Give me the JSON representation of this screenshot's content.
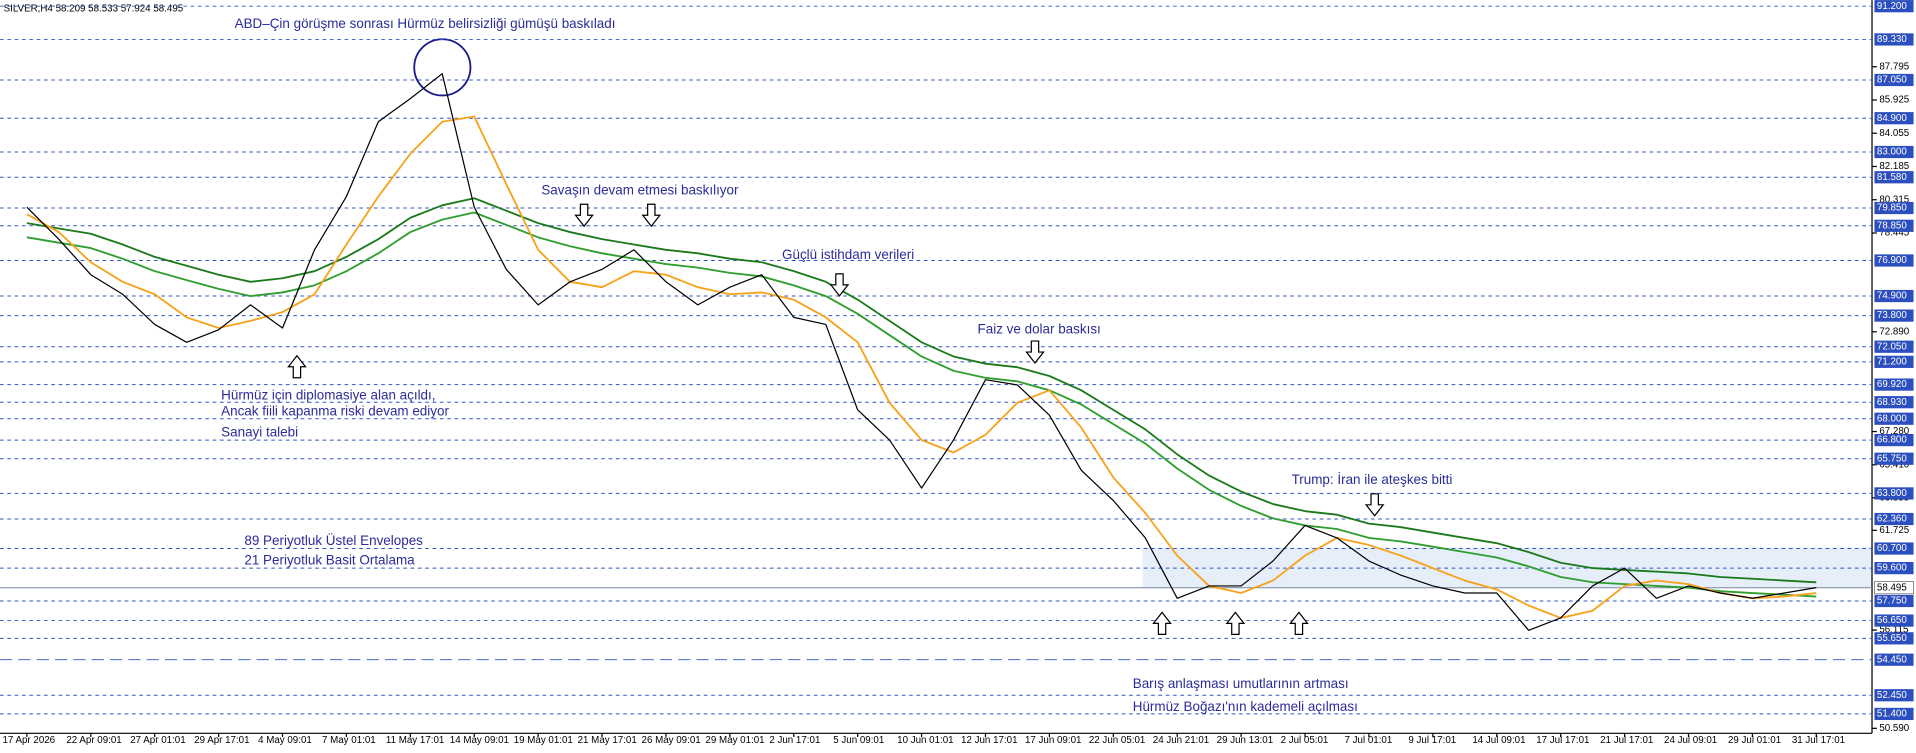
{
  "chart_data": {
    "type": "line",
    "header": "SILVER,H4  58.209 58.533 57.924 58.495",
    "categories": [
      "17 Apr 2026",
      null,
      "22 Apr 09:01",
      null,
      "27 Apr 01:01",
      null,
      "29 Apr 17:01",
      null,
      "4 May 09:01",
      null,
      "7 May 01:01",
      null,
      "11 May 17:01",
      null,
      "14 May 09:01",
      null,
      "19 May 01:01",
      null,
      "21 May 17:01",
      null,
      "26 May 09:01",
      null,
      "29 May 01:01",
      null,
      "2 Jun 17:01",
      null,
      "5 Jun 09:01",
      null,
      "10 Jun 01:01",
      null,
      "12 Jun 17:01",
      null,
      "17 Jun 09:01",
      null,
      "22 Jun 05:01",
      null,
      "24 Jun 21:01",
      null,
      "29 Jun 13:01",
      null,
      "2 Jul 05:01",
      null,
      "7 Jul 01:01",
      null,
      "9 Jul 17:01",
      null,
      "14 Jul 09:01",
      null,
      "17 Jul 17:01",
      null,
      "21 Jul 17:01",
      null,
      "24 Jul 09:01",
      null,
      "29 Jul 01:01",
      null,
      "31 Jul 17:01"
    ],
    "series": [
      {
        "color": "#1a7a1a",
        "values": [
          79.0,
          78.7,
          78.4,
          77.8,
          77.1,
          76.6,
          76.1,
          75.7,
          75.9,
          76.3,
          77.1,
          78.1,
          79.3,
          80.0,
          80.4,
          79.7,
          79.0,
          78.5,
          78.1,
          77.8,
          77.5,
          77.3,
          77.0,
          76.8,
          76.3,
          75.7,
          74.7,
          73.5,
          72.3,
          71.5,
          71.1,
          70.9,
          70.4,
          69.6,
          68.5,
          67.4,
          66.0,
          64.8,
          63.9,
          63.2,
          62.8,
          62.6,
          62.1,
          61.9,
          61.6,
          61.3,
          61.0,
          60.5,
          59.9,
          59.6,
          59.5,
          59.4,
          59.3,
          59.1,
          59.0,
          58.9,
          58.8
        ]
      },
      {
        "color": "#2e9e2e",
        "values": [
          78.2,
          77.9,
          77.6,
          77.0,
          76.3,
          75.8,
          75.3,
          74.9,
          75.1,
          75.5,
          76.3,
          77.3,
          78.5,
          79.2,
          79.6,
          78.9,
          78.2,
          77.7,
          77.3,
          77.0,
          76.7,
          76.5,
          76.2,
          76.0,
          75.5,
          74.9,
          73.9,
          72.7,
          71.5,
          70.7,
          70.3,
          70.1,
          69.6,
          68.8,
          67.7,
          66.6,
          65.2,
          64.0,
          63.1,
          62.4,
          62.0,
          61.8,
          61.3,
          61.1,
          60.8,
          60.5,
          60.2,
          59.7,
          59.1,
          58.8,
          58.7,
          58.6,
          58.5,
          58.3,
          58.2,
          58.1,
          58.0
        ]
      },
      {
        "color": "#f7a21b",
        "values": [
          79.5,
          78.5,
          76.8,
          75.7,
          75.0,
          73.7,
          73.1,
          73.5,
          74.0,
          75.0,
          77.8,
          80.5,
          82.9,
          84.7,
          85.0,
          81.2,
          77.5,
          75.7,
          75.4,
          76.3,
          76.1,
          75.4,
          75.0,
          75.1,
          74.7,
          73.7,
          72.3,
          68.9,
          66.8,
          66.1,
          67.1,
          68.9,
          69.6,
          67.5,
          64.7,
          62.7,
          60.3,
          58.6,
          58.2,
          58.9,
          60.3,
          61.3,
          60.9,
          60.3,
          59.6,
          58.9,
          58.4,
          57.5,
          56.8,
          57.2,
          58.6,
          58.9,
          58.7,
          58.2,
          57.9,
          58.0,
          58.2
        ]
      },
      {
        "color": "#000000",
        "values": [
          79.9,
          78.1,
          76.1,
          75.0,
          73.3,
          72.3,
          73.0,
          74.4,
          73.1,
          77.5,
          80.5,
          84.7,
          86.0,
          87.4,
          79.9,
          76.4,
          74.4,
          75.7,
          76.4,
          77.5,
          75.7,
          74.4,
          75.4,
          76.1,
          73.7,
          73.3,
          68.5,
          66.8,
          64.1,
          66.8,
          70.2,
          69.9,
          68.2,
          65.1,
          63.4,
          61.3,
          57.9,
          58.6,
          58.6,
          60.0,
          62.0,
          61.3,
          60.0,
          59.2,
          58.6,
          58.2,
          58.2,
          56.1,
          56.8,
          58.6,
          59.6,
          57.9,
          58.6,
          58.2,
          57.9,
          58.2,
          58.5
        ]
      }
    ],
    "ylim": [
      50.31,
      91.54
    ],
    "yticks": [
      87.795,
      85.925,
      84.055,
      82.185,
      80.315,
      78.445,
      {
        "value": 72.89,
        "label": "72.890"
      },
      {
        "value": 67.28,
        "label": "67.280"
      },
      {
        "value": 65.41,
        "label": "65.410"
      },
      63.555,
      61.725,
      56.115,
      {
        "value": 50.59,
        "label": "50.590"
      }
    ],
    "levels": [
      {
        "value": 91.2,
        "label": "91.200"
      },
      {
        "value": 89.33,
        "label": "89.330"
      },
      {
        "value": 87.05,
        "label": "87.050"
      },
      {
        "value": 84.9,
        "label": "84.900"
      },
      {
        "value": 83,
        "label": "83.000"
      },
      {
        "value": 81.58,
        "label": "81.580"
      },
      {
        "value": 79.85,
        "label": "79.850"
      },
      {
        "value": 78.85,
        "label": "78.850"
      },
      {
        "value": 76.9,
        "label": "76.900"
      },
      {
        "value": 74.9,
        "label": "74.900"
      },
      {
        "value": 73.8,
        "label": "73.800"
      },
      {
        "value": 72.05,
        "label": "72.050"
      },
      {
        "value": 71.2,
        "label": "71.200"
      },
      {
        "value": 69.92,
        "label": "69.920"
      },
      {
        "value": 68.93,
        "label": "68.930"
      },
      {
        "value": 68,
        "label": "68.000"
      },
      {
        "value": 66.8,
        "label": "66.800"
      },
      {
        "value": 65.75,
        "label": "65.750"
      },
      {
        "value": 63.8,
        "label": "63.800"
      },
      {
        "value": 62.36,
        "label": "62.360"
      },
      {
        "value": 60.7,
        "label": "60.700"
      },
      {
        "value": 59.6,
        "label": "59.600"
      },
      {
        "value": 57.75,
        "label": "57.750"
      },
      {
        "value": 56.65,
        "label": "56.650"
      },
      {
        "value": 55.65,
        "label": "55.650"
      },
      {
        "value": 54.45,
        "label": "54.450"
      },
      {
        "value": 52.45,
        "label": "52.450"
      },
      {
        "value": 51.4,
        "label": "51.400"
      }
    ],
    "last_price": 58.495,
    "annotations": [
      "ABD–Çin görüşme sonrası Hürmüz belirsizliği gümüşü baskıladı",
      "Savaşın devam etmesi baskılıyor",
      "Güçlü istihdam verileri",
      "Faiz ve dolar baskısı",
      "Hürmüz için diplomasiye alan açıldı,",
      "Ancak fiili kapanma riski devam ediyor",
      "Sanayi talebi",
      "Trump: İran ile ateşkes bitti",
      "89 Periyotluk Üstel Envelopes",
      "21 Periyotluk Basit Ortalama",
      "Barış anlaşması umutlarının artması",
      "Hürmüz Boğazı'nın kademeli açılması"
    ]
  }
}
